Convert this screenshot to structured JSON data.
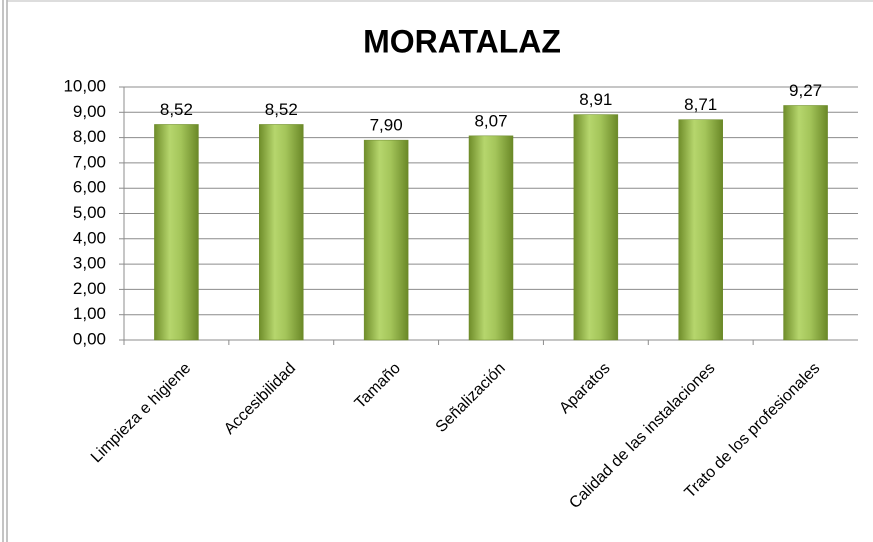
{
  "chart_data": {
    "type": "bar",
    "title": "MORATALAZ",
    "categories": [
      "Limpieza e higiene",
      "Accesibilidad",
      "Tamaño",
      "Señalización",
      "Aparatos",
      "Calidad de las instalaciones",
      "Trato de los profesionales"
    ],
    "values": [
      8.52,
      8.52,
      7.9,
      8.07,
      8.91,
      8.71,
      9.27
    ],
    "value_labels": [
      "8,52",
      "8,52",
      "7,90",
      "8,07",
      "8,91",
      "8,71",
      "9,27"
    ],
    "color": "#9bbb59",
    "ylim": [
      0,
      10
    ],
    "yticks": [
      {
        "value": 0,
        "label": "0,00"
      },
      {
        "value": 1,
        "label": "1,00"
      },
      {
        "value": 2,
        "label": "2,00"
      },
      {
        "value": 3,
        "label": "3,00"
      },
      {
        "value": 4,
        "label": "4,00"
      },
      {
        "value": 5,
        "label": "5,00"
      },
      {
        "value": 6,
        "label": "6,00"
      },
      {
        "value": 7,
        "label": "7,00"
      },
      {
        "value": 8,
        "label": "8,00"
      },
      {
        "value": 9,
        "label": "9,00"
      },
      {
        "value": 10,
        "label": "10,00"
      }
    ],
    "grid": true
  }
}
